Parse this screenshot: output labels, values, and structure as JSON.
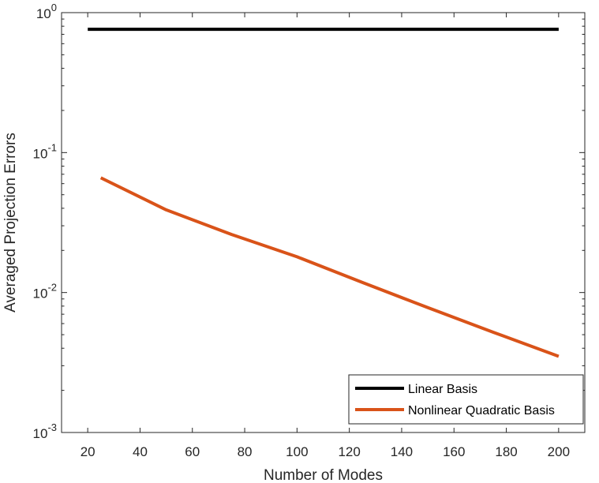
{
  "chart_data": {
    "type": "line",
    "title": "",
    "xlabel": "Number of Modes",
    "ylabel": "Averaged Projection Errors",
    "xlim": [
      10,
      210
    ],
    "ylim": [
      0.001,
      1
    ],
    "yscale": "log",
    "xticks": [
      20,
      40,
      60,
      80,
      100,
      120,
      140,
      160,
      180,
      200
    ],
    "yticks": [
      {
        "value": 0.001,
        "base": "10",
        "exp": "-3"
      },
      {
        "value": 0.01,
        "base": "10",
        "exp": "-2"
      },
      {
        "value": 0.1,
        "base": "10",
        "exp": "-1"
      },
      {
        "value": 1,
        "base": "10",
        "exp": "0"
      }
    ],
    "grid": false,
    "legend_position": "bottom-right",
    "series": [
      {
        "name": "Linear Basis",
        "color": "#000000",
        "x": [
          20,
          200
        ],
        "y": [
          0.76,
          0.76
        ]
      },
      {
        "name": "Nonlinear Quadratic Basis",
        "color": "#D95319",
        "x": [
          25,
          50,
          75,
          100,
          125,
          150,
          175,
          200
        ],
        "y": [
          0.066,
          0.039,
          0.026,
          0.018,
          0.0118,
          0.0078,
          0.0052,
          0.0035
        ]
      }
    ]
  }
}
